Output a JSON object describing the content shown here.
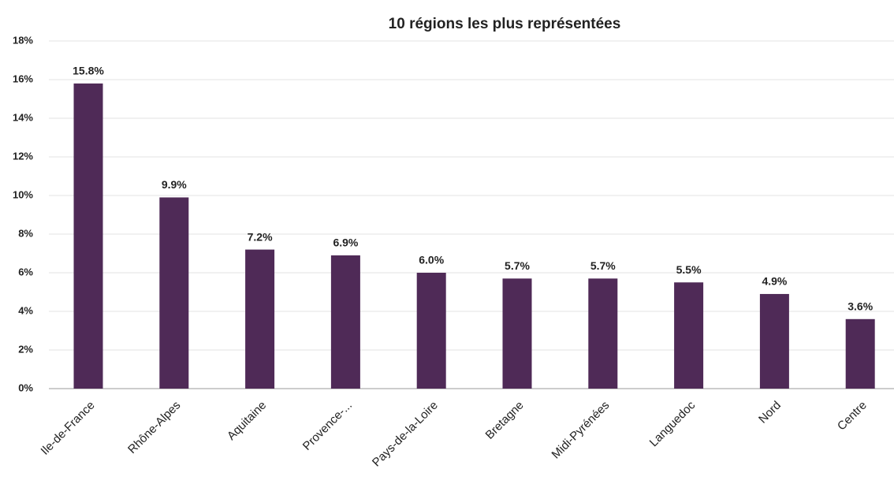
{
  "chart_data": {
    "type": "bar",
    "title": "10 régions les plus représentées",
    "categories": [
      "Ile-de-France",
      "Rhône-Alpes",
      "Aquitaine",
      "Provence-...",
      "Pays-de-la-Loire",
      "Bretagne",
      "Midi-Pyrénées",
      "Languedoc",
      "Nord",
      "Centre"
    ],
    "values": [
      15.8,
      9.9,
      7.2,
      6.9,
      6.0,
      5.7,
      5.7,
      5.5,
      4.9,
      3.6
    ],
    "value_labels": [
      "15.8%",
      "9.9%",
      "7.2%",
      "6.9%",
      "6.0%",
      "5.7%",
      "5.7%",
      "5.5%",
      "4.9%",
      "3.6%"
    ],
    "color": "#4f2a57",
    "ylim": [
      0,
      18
    ],
    "yticks": [
      {
        "value": 0,
        "label": "0%"
      },
      {
        "value": 2,
        "label": "2%"
      },
      {
        "value": 4,
        "label": "4%"
      },
      {
        "value": 6,
        "label": "6%"
      },
      {
        "value": 8,
        "label": "8%"
      },
      {
        "value": 10,
        "label": "10%"
      },
      {
        "value": 12,
        "label": "12%"
      },
      {
        "value": 14,
        "label": "14%"
      },
      {
        "value": 16,
        "label": "16%"
      },
      {
        "value": 18,
        "label": "18%"
      }
    ],
    "grid": true
  }
}
